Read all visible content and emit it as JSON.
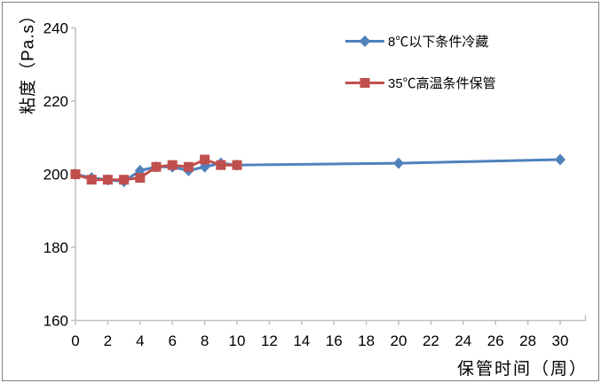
{
  "chart_data": {
    "type": "line",
    "title": "",
    "xlabel": "保管时间（周）",
    "ylabel": "粘度（Pa.s）",
    "xlim": [
      0,
      30
    ],
    "ylim": [
      160,
      240
    ],
    "x_ticks": [
      0,
      2,
      4,
      6,
      8,
      10,
      12,
      14,
      16,
      18,
      20,
      22,
      24,
      26,
      28,
      30
    ],
    "y_ticks": [
      160,
      180,
      200,
      220,
      240
    ],
    "grid": false,
    "legend_position": "inside-top-right",
    "axis_color": "#BFBFBF",
    "text_color": "#000000",
    "series": [
      {
        "name": "8℃以下条件冷藏",
        "color": "#4F81BD",
        "marker": "diamond",
        "x": [
          0,
          1,
          2,
          3,
          4,
          5,
          6,
          7,
          8,
          9,
          10,
          20,
          30
        ],
        "y": [
          200,
          199,
          198.5,
          198,
          201,
          202,
          202,
          201,
          202,
          203,
          202.5,
          203,
          204
        ]
      },
      {
        "name": "35℃高温条件保管",
        "color": "#C0504D",
        "marker": "square",
        "x": [
          0,
          1,
          2,
          3,
          4,
          5,
          6,
          7,
          8,
          9,
          10
        ],
        "y": [
          200,
          198.5,
          198.5,
          198.5,
          199,
          202,
          202.5,
          202,
          204,
          202.5,
          202.5
        ]
      }
    ]
  }
}
